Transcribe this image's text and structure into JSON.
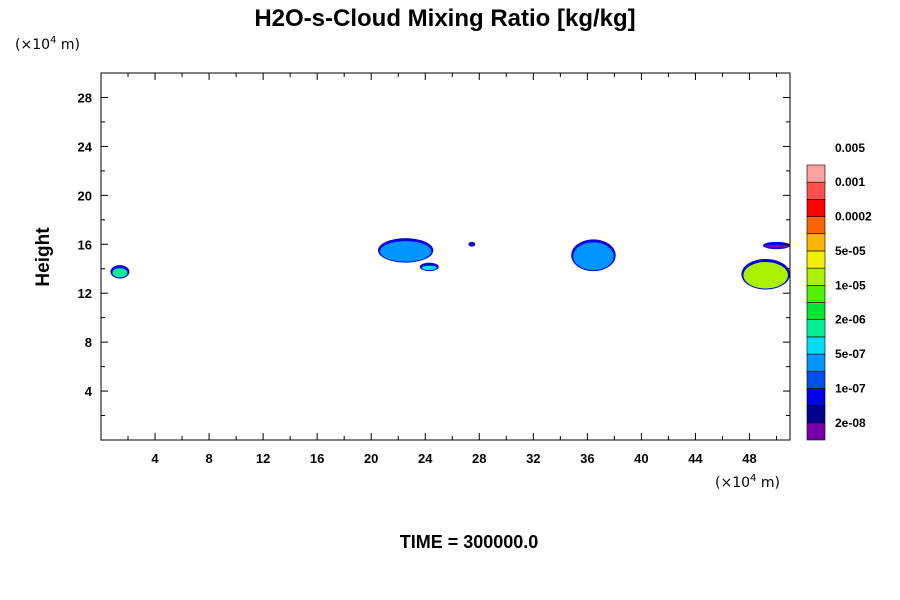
{
  "chart_data": {
    "type": "heatmap",
    "title": "H2O-s-Cloud Mixing Ratio [kg/kg]",
    "ylabel": "Height",
    "x_unit_prefix": "(×10",
    "x_unit_exp": "4",
    "x_unit_suffix": " m)",
    "y_unit_prefix": "(×10",
    "y_unit_exp": "4",
    "y_unit_suffix": " m)",
    "xlim": [
      0,
      51
    ],
    "ylim": [
      0,
      30
    ],
    "x_ticks": [
      4,
      8,
      12,
      16,
      20,
      24,
      28,
      32,
      36,
      40,
      44,
      48
    ],
    "y_ticks": [
      4,
      8,
      12,
      16,
      20,
      24,
      28
    ],
    "x_tick_labels": [
      "4",
      "8",
      "12",
      "16",
      "20",
      "24",
      "28",
      "32",
      "36",
      "40",
      "44",
      "48"
    ],
    "y_tick_labels": [
      "4",
      "8",
      "12",
      "16",
      "20",
      "24",
      "28"
    ],
    "time_label": "TIME = 300000.0",
    "colorbar": {
      "colors": [
        "#7700aa",
        "#00008c",
        "#0000e6",
        "#0050f0",
        "#0096ff",
        "#00dcf5",
        "#00f096",
        "#00e632",
        "#50f000",
        "#aaf000",
        "#f0f000",
        "#ffb400",
        "#ff6400",
        "#ff0000",
        "#ff5050",
        "#ffa0a0"
      ],
      "labels": [
        "2e-08",
        "1e-07",
        "5e-07",
        "2e-06",
        "1e-05",
        "5e-05",
        "0.0002",
        "0.001",
        "0.005"
      ]
    },
    "cloud_regions": [
      {
        "x_range": [
          0.7,
          2.1
        ],
        "y_range": [
          13.2,
          14.3
        ],
        "color": "#00f096"
      },
      {
        "x_range": [
          20.5,
          24.6
        ],
        "y_range": [
          14.5,
          16.5
        ],
        "color": "#0096ff"
      },
      {
        "x_range": [
          23.6,
          25.0
        ],
        "y_range": [
          13.8,
          14.5
        ],
        "color": "#00dcf5"
      },
      {
        "x_range": [
          27.2,
          27.7
        ],
        "y_range": [
          15.8,
          16.2
        ],
        "color": "#7700aa"
      },
      {
        "x_range": [
          34.8,
          38.1
        ],
        "y_range": [
          13.8,
          16.4
        ],
        "color": "#0096ff"
      },
      {
        "x_range": [
          49.0,
          51.0
        ],
        "y_range": [
          15.6,
          16.2
        ],
        "color": "#7700aa"
      },
      {
        "x_range": [
          47.4,
          51.0
        ],
        "y_range": [
          12.3,
          14.8
        ],
        "color": "#aaf000"
      }
    ]
  }
}
